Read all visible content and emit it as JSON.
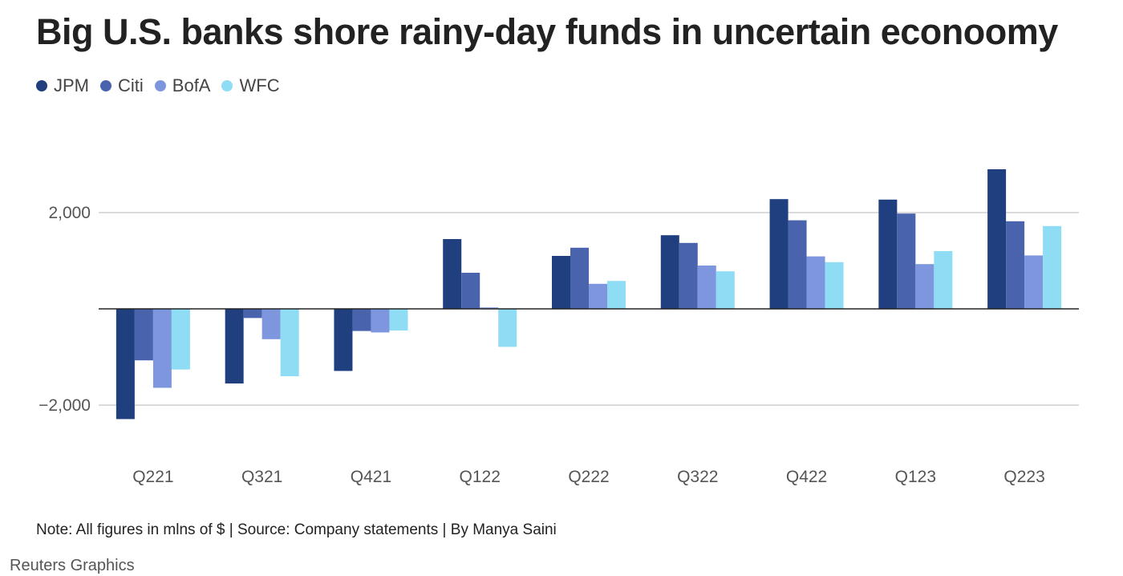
{
  "chart_data": {
    "type": "bar",
    "title": "Big U.S. banks shore rainy-day funds in uncertain econoomy",
    "categories": [
      "Q221",
      "Q321",
      "Q421",
      "Q122",
      "Q222",
      "Q322",
      "Q422",
      "Q123",
      "Q223"
    ],
    "series": [
      {
        "name": "JPM",
        "color": "#1f3f7f",
        "values": [
          -2290,
          -1550,
          -1290,
          1450,
          1100,
          1530,
          2280,
          2270,
          2900
        ]
      },
      {
        "name": "Citi",
        "color": "#4a63ad",
        "values": [
          -1070,
          -190,
          -460,
          750,
          1270,
          1370,
          1840,
          1980,
          1820
        ]
      },
      {
        "name": "BofA",
        "color": "#7d96de",
        "values": [
          -1640,
          -630,
          -490,
          30,
          520,
          900,
          1090,
          930,
          1110
        ]
      },
      {
        "name": "WFC",
        "color": "#8fdcf5",
        "values": [
          -1260,
          -1400,
          -450,
          -790,
          580,
          780,
          970,
          1200,
          1720
        ]
      }
    ],
    "yticks": [
      {
        "value": 2000,
        "label": "2,000"
      },
      {
        "value": -2000,
        "label": "−2,000"
      }
    ],
    "ylim": [
      -3000,
      3700
    ],
    "xlabel": "",
    "ylabel": "",
    "legend_position": "top-left"
  },
  "note": "Note: All figures in mlns of $ | Source: Company statements | By Manya Saini",
  "credit": "Reuters Graphics"
}
